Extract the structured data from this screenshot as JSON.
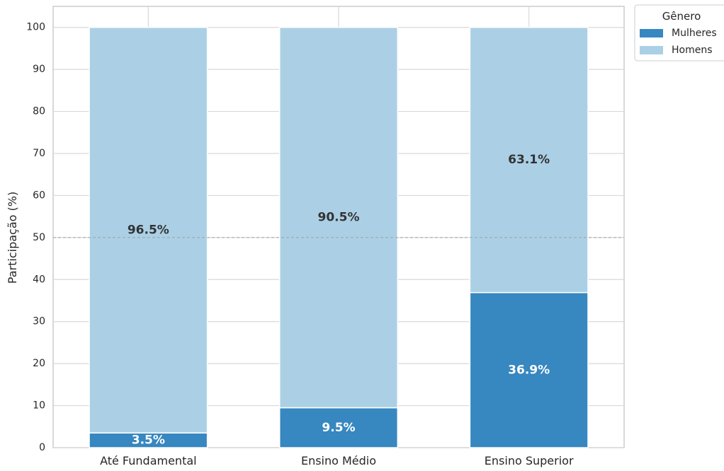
{
  "chart_data": {
    "type": "bar",
    "stacked": true,
    "categories": [
      "Até Fundamental",
      "Ensino Médio",
      "Ensino Superior"
    ],
    "series": [
      {
        "name": "Mulheres",
        "values": [
          3.5,
          9.5,
          36.9
        ],
        "labels": [
          "3.5%",
          "9.5%",
          "36.9%"
        ],
        "color": "#3787c0",
        "label_color": "#ffffff"
      },
      {
        "name": "Homens",
        "values": [
          96.5,
          90.5,
          63.1
        ],
        "labels": [
          "96.5%",
          "90.5%",
          "63.1%"
        ],
        "color": "#abd0e6",
        "label_color": "#333333"
      }
    ],
    "ylabel": "Participação (%)",
    "xlabel": "",
    "ylim": [
      0,
      105
    ],
    "yticks": [
      0,
      10,
      20,
      30,
      40,
      50,
      60,
      70,
      80,
      90,
      100
    ],
    "reference_line": {
      "y": 50,
      "style": "dashed",
      "color": "#a0a0a0"
    },
    "grid": true,
    "legend": {
      "title": "Gênero",
      "placement": "outside-top-right"
    }
  }
}
